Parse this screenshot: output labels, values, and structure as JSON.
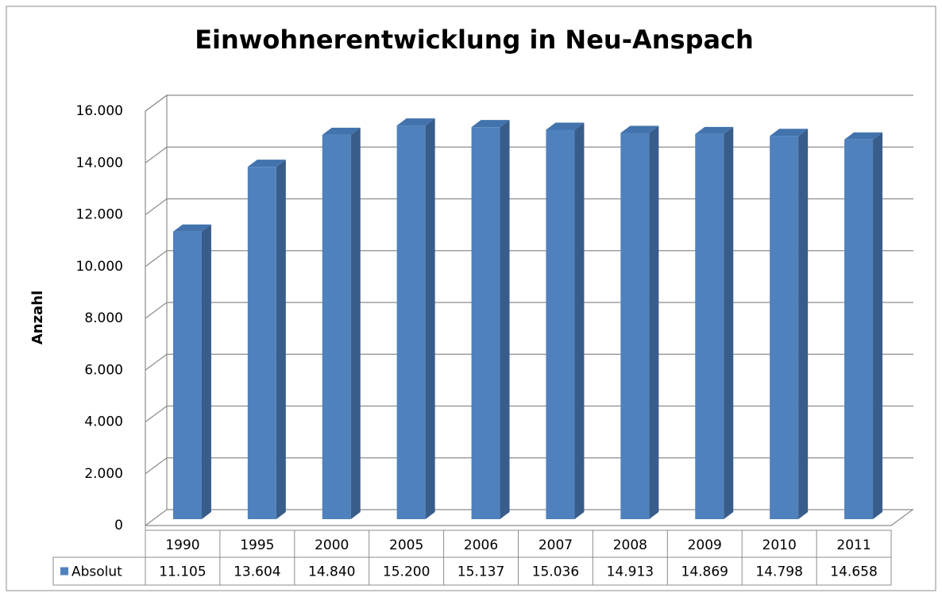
{
  "chart_data": {
    "type": "bar",
    "title": "Einwohnerentwicklung in Neu-Anspach",
    "y_label": "Anzahl",
    "categories": [
      "1990",
      "1995",
      "2000",
      "2005",
      "2006",
      "2007",
      "2008",
      "2009",
      "2010",
      "2011"
    ],
    "series": [
      {
        "name": "Absolut",
        "color": "#4f81bd",
        "values": [
          11105,
          13604,
          14840,
          15200,
          15137,
          15036,
          14913,
          14869,
          14798,
          14658
        ],
        "value_labels": [
          "11.105",
          "13.604",
          "14.840",
          "15.200",
          "15.137",
          "15.036",
          "14.913",
          "14.869",
          "14.798",
          "14.658"
        ]
      }
    ],
    "ylim": [
      0,
      16000
    ],
    "yticks": [
      0,
      {
        "value": 2000,
        "label": "2.000"
      },
      {
        "value": 4000,
        "label": "4.000"
      },
      {
        "value": 6000,
        "label": "6.000"
      },
      {
        "value": 8000,
        "label": "8.000"
      },
      {
        "value": 10000,
        "label": "10.000"
      },
      {
        "value": 12000,
        "label": "12.000"
      },
      {
        "value": 14000,
        "label": "14.000"
      },
      {
        "value": 16000,
        "label": "16.000"
      }
    ],
    "grid": true,
    "data_table": true
  }
}
